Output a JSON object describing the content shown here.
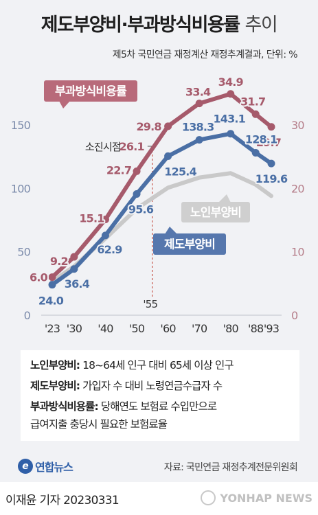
{
  "header": {
    "title_bold": "제도부양비·부과방식비용률",
    "title_light": "추이",
    "subtitle": "제5차 국민연금 재정계산 재정추계결과, 단위: %"
  },
  "colors": {
    "pay_rate": "#a65a6b",
    "pay_rate_label_bg": "#b86a7a",
    "system_dependency": "#4a6fa5",
    "system_label_bg": "#5677ad",
    "elderly_dependency": "#c9c9c9",
    "elderly_label_bg": "#cfcfcf",
    "left_axis": "#7a8aaa",
    "right_axis": "#b57d89"
  },
  "chart_data": {
    "type": "line",
    "categories": [
      "'23",
      "'30",
      "'40",
      "'50",
      "'60",
      "'70",
      "'80",
      "'88",
      "'93"
    ],
    "x_positions": [
      2023,
      2030,
      2040,
      2050,
      2060,
      2070,
      2080,
      2088,
      2093
    ],
    "left_axis": {
      "ticks": [
        "0",
        "50",
        "100",
        "150"
      ],
      "range": [
        0,
        150
      ]
    },
    "right_axis": {
      "ticks": [
        "0",
        "10",
        "20",
        "30"
      ],
      "range": [
        0,
        30
      ]
    },
    "series": [
      {
        "name": "부과방식비용률",
        "axis": "right",
        "values": [
          6.0,
          9.2,
          15.1,
          22.7,
          29.8,
          33.4,
          34.9,
          31.7,
          29.7
        ],
        "labels": [
          "6.0",
          "9.2",
          "15.1",
          "22.7",
          "29.8",
          "33.4",
          "34.9",
          "31.7",
          "29.7"
        ]
      },
      {
        "name": "제도부양비",
        "axis": "left",
        "values": [
          24.0,
          36.4,
          62.9,
          95.6,
          125.4,
          138.3,
          143.1,
          128.1,
          119.6
        ],
        "labels": [
          "24.0",
          "36.4",
          "62.9",
          "95.6",
          "125.4",
          "138.3",
          "143.1",
          "128.1",
          "119.6"
        ]
      },
      {
        "name": "노인부양비",
        "axis": "left",
        "values": [
          26.5,
          38.5,
          60.5,
          84.0,
          100.5,
          108.5,
          112.0,
          103.0,
          94.0
        ]
      }
    ],
    "annotations": {
      "depletion_label": "소진시점",
      "depletion_value": "26.1",
      "depletion_value_num": 26.1,
      "depletion_year_label": "'55",
      "depletion_year": 2055
    }
  },
  "legend": {
    "lines": [
      {
        "term": "노인부양비:",
        "desc": " 18~64세 인구 대비 65세 이상 인구"
      },
      {
        "term": "제도부양비:",
        "desc": " 가입자 수 대비 노령연금수급자 수"
      },
      {
        "term": "부과방식비용률:",
        "desc": " 당해연도 보험료 수입만으로"
      },
      {
        "term": "",
        "desc": "급여지출 충당시 필요한 보험료율"
      }
    ]
  },
  "branding": {
    "logo_symbol": "e",
    "logo_text": "연합뉴스",
    "source": "자료: 국민연금 재정추계전문위원회",
    "reporter": "이재윤 기자  20230331",
    "wire_text": "YONHAP NEWS"
  }
}
